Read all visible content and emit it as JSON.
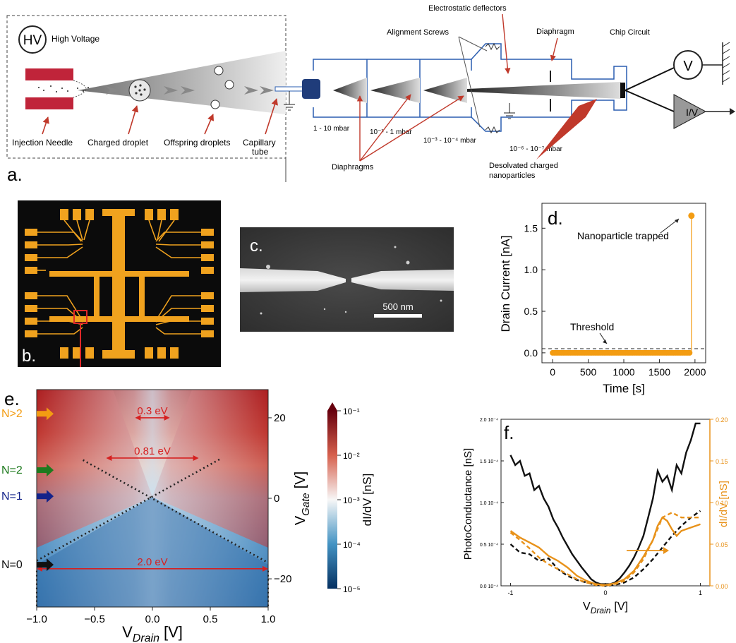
{
  "panel_a": {
    "panel_letter": "a.",
    "hv_symbol": "HV",
    "high_voltage": "High Voltage",
    "injection_needle": "Injection Needle",
    "charged_droplet": "Charged droplet",
    "offspring_droplets": "Offspring droplets",
    "capillary_l1": "Capillary",
    "capillary_l2": "tube",
    "electrostatic_deflectors": "Electrostatic deflectors",
    "alignment_screws": "Alignment Screws",
    "diaphragm": "Diaphragm",
    "chip_circuit": "Chip Circuit",
    "voltmeter": "V",
    "iv_converter": "I/V",
    "p1": "1 - 10 mbar",
    "p2": "10⁻¹ - 1 mbar",
    "p3": "10⁻³ - 10⁻⁴  mbar",
    "p4": "10⁻⁶ - 10⁻⁷ mbar",
    "diaphragms": "Diaphragms",
    "desolvated_l1": "Desolvated charged",
    "desolvated_l2": "nanoparticles"
  },
  "panel_b": {
    "panel_letter": "b."
  },
  "panel_c": {
    "panel_letter": "c.",
    "scale_bar": "500 nm"
  },
  "panel_d": {
    "panel_letter": "d.",
    "annotation_trapped": "Nanoparticle trapped",
    "annotation_threshold": "Threshold",
    "chart_data": {
      "type": "scatter",
      "xlabel": "Time [s]",
      "ylabel": "Drain Current [nA]",
      "xlim": [
        -150,
        2150
      ],
      "ylim": [
        -0.12,
        1.8
      ],
      "xticks": [
        "0",
        "500",
        "1000",
        "1500",
        "2000"
      ],
      "yticks": [
        "0.0",
        "0.5",
        "1.0",
        "1.5"
      ],
      "threshold": 0.05,
      "points_range": [
        0,
        1930
      ],
      "points_value": 0.0,
      "spike": {
        "x": 1950,
        "y": 1.65
      },
      "color": "#f39c12"
    }
  },
  "panel_e": {
    "panel_letter": "e.",
    "chart_data": {
      "type": "heatmap",
      "xlabel": "V",
      "xlabel_sub": "Drain",
      "xlabel_unit": "[V]",
      "ylabel": "V",
      "ylabel_sub": "Gate",
      "ylabel_unit": "[V]",
      "xlim": [
        -1.0,
        1.0
      ],
      "ylim": [
        -27,
        27
      ],
      "xticks": [
        "−1.0",
        "−0.5",
        "0.0",
        "0.5",
        "1.0"
      ],
      "yticks": [
        "20",
        "0",
        "−20"
      ],
      "colorbar_label": "dI/dV [nS]",
      "colorbar_ticks": [
        "10⁻¹",
        "10⁻²",
        "10⁻³",
        "10⁻⁴",
        "10⁻⁵"
      ],
      "gaps": [
        {
          "label": "0.3 eV",
          "from": -0.15,
          "to": 0.15,
          "vg": 20
        },
        {
          "label": "0.81 eV",
          "from": -0.4,
          "to": 0.4,
          "vg": 10
        },
        {
          "label": "2.0 eV",
          "from": -1.0,
          "to": 1.0,
          "vg": -17.5
        }
      ],
      "states": [
        {
          "label": "N>2",
          "vg": 21,
          "color": "#f39c12"
        },
        {
          "label": "N=2",
          "vg": 7,
          "color": "#1e7a1e"
        },
        {
          "label": "N=1",
          "vg": 0.5,
          "color": "#13238a"
        },
        {
          "label": "N=0",
          "vg": -16.5,
          "color": "#111111"
        }
      ]
    }
  },
  "panel_f": {
    "panel_letter": "f.",
    "chart_data": {
      "type": "line",
      "xlabel": "V",
      "xlabel_sub": "Drain",
      "xlabel_unit": "[V]",
      "ylabel_left": "PhotoConductance [nS]",
      "ylabel_right": "dI/dV [nS]",
      "xlim": [
        -1.1,
        1.1
      ],
      "ylim_left": [
        0,
        2.0
      ],
      "ylim_right": [
        0,
        0.2
      ],
      "xticks": [
        "-1",
        "0",
        "1"
      ],
      "yticks_left": [
        "2.0 10⁻⁴",
        "1.5 10⁻⁴",
        "1.0 10⁻⁴",
        "0.5 10⁻⁴",
        "0.0 10⁻⁴"
      ],
      "yticks_right": [
        "0.20",
        "0.15",
        "0.10",
        "0.05",
        "0.00"
      ],
      "series": [
        {
          "axis": "left",
          "color": "#111111",
          "dash": false,
          "x": [
            -1.0,
            -0.95,
            -0.9,
            -0.85,
            -0.8,
            -0.75,
            -0.7,
            -0.65,
            -0.6,
            -0.55,
            -0.5,
            -0.45,
            -0.4,
            -0.35,
            -0.3,
            -0.25,
            -0.2,
            -0.15,
            -0.1,
            -0.05,
            0.0,
            0.05,
            0.1,
            0.15,
            0.2,
            0.25,
            0.3,
            0.35,
            0.4,
            0.45,
            0.5,
            0.55,
            0.6,
            0.65,
            0.7,
            0.75,
            0.8,
            0.85,
            0.9,
            0.95,
            1.0
          ],
          "y": [
            1.57,
            1.45,
            1.5,
            1.32,
            1.35,
            1.15,
            1.2,
            1.05,
            0.95,
            0.8,
            0.7,
            0.58,
            0.48,
            0.38,
            0.3,
            0.22,
            0.15,
            0.08,
            0.04,
            0.02,
            0.02,
            0.02,
            0.04,
            0.09,
            0.16,
            0.24,
            0.34,
            0.46,
            0.6,
            0.82,
            1.05,
            1.38,
            1.25,
            1.32,
            1.15,
            1.45,
            1.35,
            1.6,
            1.75,
            1.95,
            1.95
          ]
        },
        {
          "axis": "left",
          "color": "#111111",
          "dash": true,
          "x": [
            -1.0,
            -0.9,
            -0.8,
            -0.7,
            -0.6,
            -0.5,
            -0.4,
            -0.3,
            -0.2,
            -0.1,
            0.0,
            0.1,
            0.2,
            0.3,
            0.4,
            0.5,
            0.6,
            0.7,
            0.8,
            0.9,
            1.0
          ],
          "y": [
            0.5,
            0.4,
            0.38,
            0.3,
            0.33,
            0.2,
            0.12,
            0.07,
            0.04,
            0.01,
            0.0,
            0.01,
            0.04,
            0.1,
            0.2,
            0.32,
            0.46,
            0.6,
            0.72,
            0.82,
            0.9
          ]
        },
        {
          "axis": "right",
          "color": "#e8921a",
          "dash": false,
          "x": [
            -1.0,
            -0.9,
            -0.8,
            -0.7,
            -0.6,
            -0.5,
            -0.4,
            -0.3,
            -0.2,
            -0.1,
            0.0,
            0.1,
            0.2,
            0.3,
            0.4,
            0.5,
            0.55,
            0.6,
            0.65,
            0.7,
            0.75,
            0.8,
            0.9,
            1.0
          ],
          "y": [
            0.066,
            0.058,
            0.052,
            0.046,
            0.036,
            0.03,
            0.022,
            0.012,
            0.006,
            0.002,
            0.001,
            0.003,
            0.008,
            0.018,
            0.035,
            0.055,
            0.072,
            0.082,
            0.078,
            0.068,
            0.06,
            0.066,
            0.07,
            0.074
          ]
        },
        {
          "axis": "right",
          "color": "#e8921a",
          "dash": true,
          "x": [
            -1.0,
            -0.9,
            -0.8,
            -0.7,
            -0.6,
            -0.5,
            -0.4,
            -0.3,
            -0.2,
            -0.1,
            0.0,
            0.1,
            0.2,
            0.3,
            0.4,
            0.5,
            0.6,
            0.7,
            0.8,
            0.9,
            1.0
          ],
          "y": [
            0.064,
            0.055,
            0.045,
            0.034,
            0.026,
            0.02,
            0.014,
            0.008,
            0.004,
            0.001,
            0.0,
            0.002,
            0.006,
            0.016,
            0.032,
            0.055,
            0.082,
            0.088,
            0.082,
            0.082,
            0.082
          ]
        }
      ]
    }
  }
}
